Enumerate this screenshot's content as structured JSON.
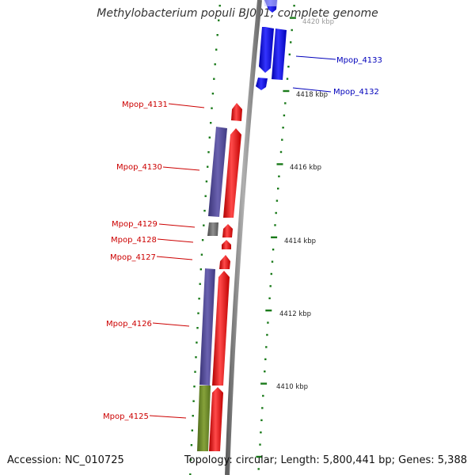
{
  "title": "Methylobacterium populi BJ001, complete genome",
  "footer": {
    "accession": "Accession: NC_010725",
    "stats": "Topology: circular; Length: 5,800,441 bp; Genes: 5,388"
  },
  "colors": {
    "backbone": "#8c8c8c",
    "forward_gene": "#ff2020",
    "reverse_gene": "#1a1aee",
    "gene_feature_purple": "#58509a",
    "gene_feature_gray": "#707070",
    "gene_feature_green": "#6a8a2a",
    "scale_tick": "#1a7a1a",
    "label_red": "#cc0000",
    "label_blue": "#0000bb"
  },
  "scale_labels": [
    {
      "text": "4420 kbp",
      "faded": true
    },
    {
      "text": "4418 kbp"
    },
    {
      "text": "4416 kbp"
    },
    {
      "text": "4414 kbp"
    },
    {
      "text": "4412 kbp"
    },
    {
      "text": "4410 kbp"
    }
  ],
  "gene_labels": [
    {
      "text": "Mpop_4133",
      "color": "blue"
    },
    {
      "text": "Mpop_4132",
      "color": "blue"
    },
    {
      "text": "Mpop_4131",
      "color": "red"
    },
    {
      "text": "Mpop_4130",
      "color": "red"
    },
    {
      "text": "Mpop_4129",
      "color": "red"
    },
    {
      "text": "Mpop_4128",
      "color": "red"
    },
    {
      "text": "Mpop_4127",
      "color": "red"
    },
    {
      "text": "Mpop_4126",
      "color": "red"
    },
    {
      "text": "Mpop_4125",
      "color": "red"
    }
  ]
}
